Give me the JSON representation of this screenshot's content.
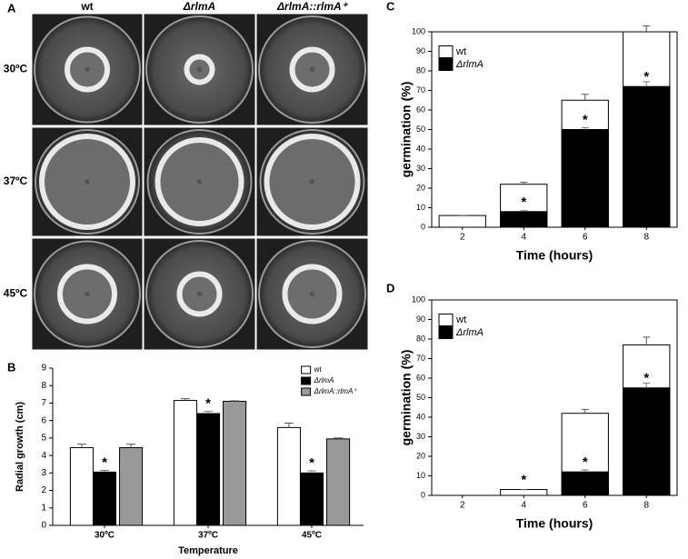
{
  "panel_a": {
    "panel_label": "A",
    "columns": [
      "wt",
      "ΔrlmA",
      "ΔrlmA::rlmA⁺"
    ],
    "rows": [
      "30ºC",
      "37ºC",
      "45ºC"
    ]
  },
  "chart_data": [
    {
      "type": "bar",
      "barmode": "group",
      "panel_label": "B",
      "y_label": "Radial growth (cm)",
      "x_label": "Temperature",
      "categories": [
        "30ºC",
        "37ºC",
        "45ºC"
      ],
      "series": [
        {
          "name": "wt",
          "color": "#ffffff",
          "values": [
            4.45,
            7.15,
            5.6
          ],
          "errors": [
            0.2,
            0.1,
            0.25
          ]
        },
        {
          "name": "ΔrlmA",
          "color": "#000000",
          "values": [
            3.05,
            6.4,
            3.0
          ],
          "errors": [
            0.1,
            0.12,
            0.12
          ],
          "annotations": [
            "*",
            "*",
            "*"
          ]
        },
        {
          "name": "ΔrlmA::rlmA⁺",
          "color": "#999999",
          "values": [
            4.45,
            7.1,
            4.95
          ],
          "errors": [
            0.2,
            0.03,
            0.05
          ]
        }
      ],
      "ylim": [
        0,
        9
      ],
      "yticks": [
        0,
        1,
        2,
        3,
        4,
        5,
        6,
        7,
        8,
        9
      ],
      "legend": "upper right"
    },
    {
      "type": "bar",
      "barmode": "overlay",
      "panel_label": "C",
      "y_label": "germination (%)",
      "x_label": "Time (hours)",
      "categories": [
        "2",
        "4",
        "6",
        "8"
      ],
      "series": [
        {
          "name": "wt",
          "color": "#ffffff",
          "values": [
            6,
            22,
            65,
            100
          ],
          "errors": [
            0,
            1,
            3,
            3
          ]
        },
        {
          "name": "ΔrlmA",
          "color": "#000000",
          "values": [
            0,
            8,
            50,
            72
          ],
          "errors": [
            0,
            0.5,
            1,
            2.5
          ],
          "annotations": [
            null,
            "*",
            "*",
            "*"
          ]
        }
      ],
      "ylim": [
        0,
        100
      ],
      "yticks": [
        0,
        10,
        20,
        30,
        40,
        50,
        60,
        70,
        80,
        90,
        100
      ],
      "legend": "upper left"
    },
    {
      "type": "bar",
      "barmode": "overlay",
      "panel_label": "D",
      "y_label": "germination (%)",
      "x_label": "Time (hours)",
      "categories": [
        "2",
        "4",
        "6",
        "8"
      ],
      "series": [
        {
          "name": "wt",
          "color": "#ffffff",
          "values": [
            0,
            3,
            42,
            77
          ],
          "errors": [
            0,
            0,
            2,
            4
          ]
        },
        {
          "name": "ΔrlmA",
          "color": "#000000",
          "values": [
            0,
            0,
            12,
            55
          ],
          "errors": [
            0,
            0,
            1,
            2.5
          ],
          "annotations": [
            null,
            "*",
            "*",
            "*"
          ]
        }
      ],
      "ylim": [
        0,
        100
      ],
      "yticks": [
        0,
        10,
        20,
        30,
        40,
        50,
        60,
        70,
        80,
        90,
        100
      ],
      "legend": "upper left"
    }
  ]
}
